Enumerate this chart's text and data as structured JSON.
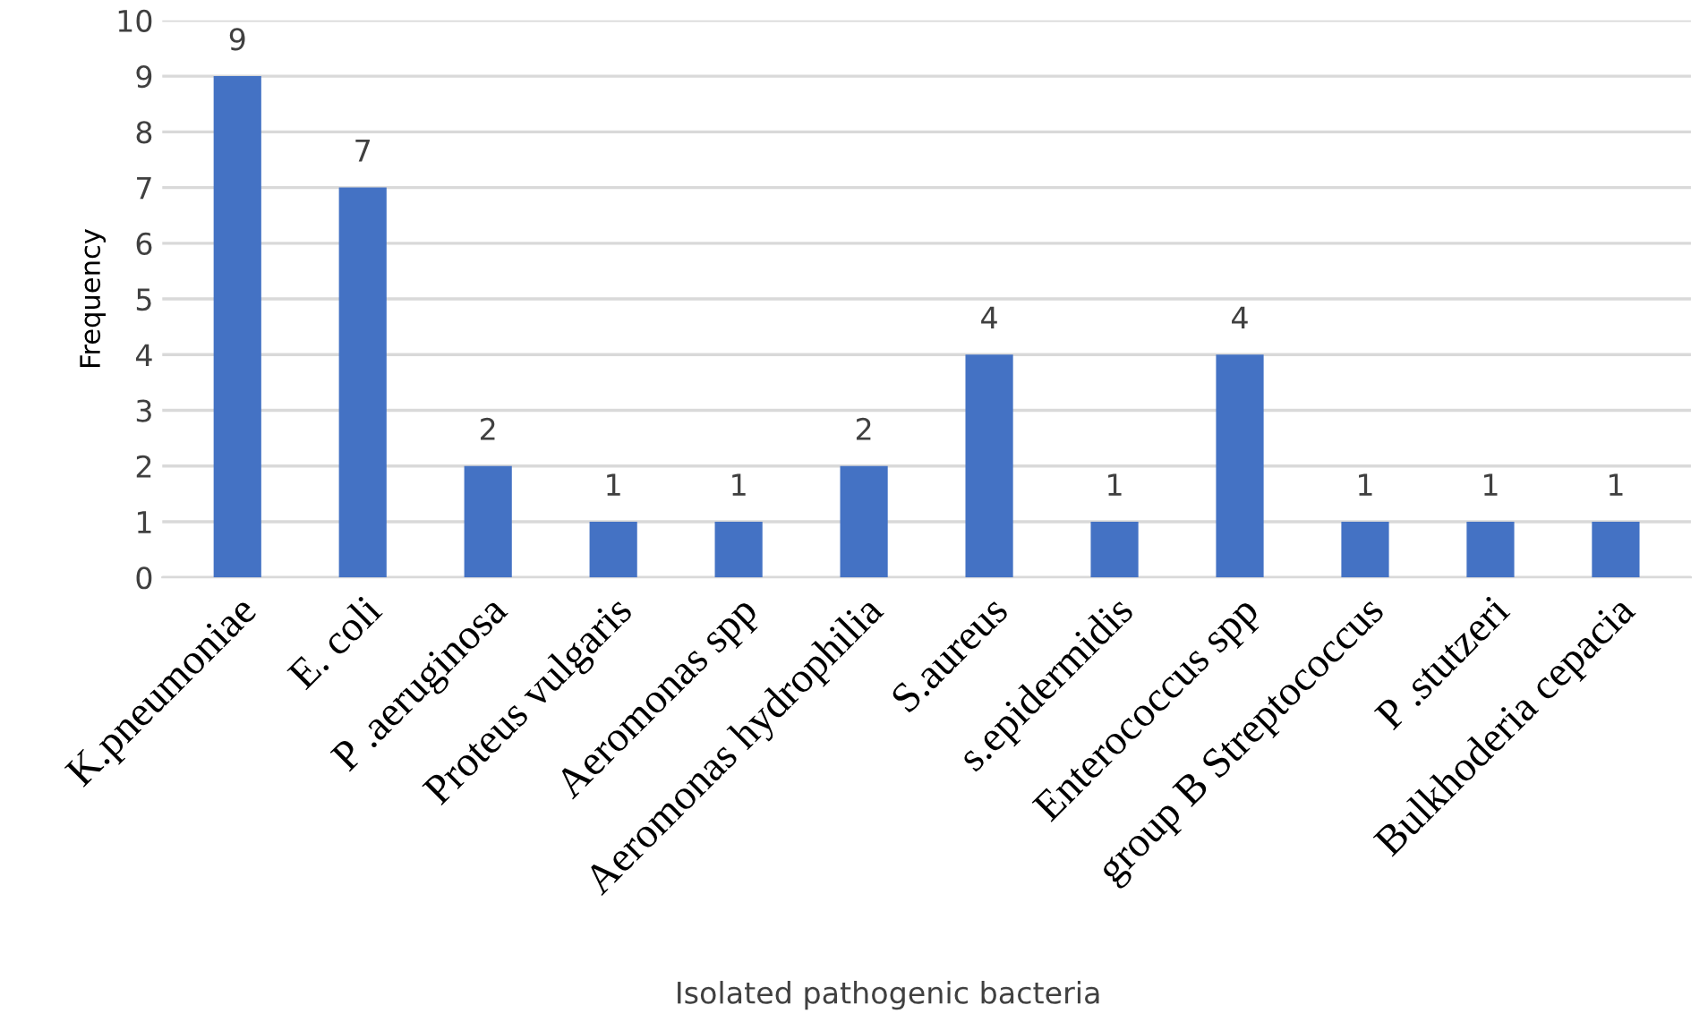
{
  "chart_data": {
    "type": "bar",
    "xlabel": "Isolated pathogenic bacteria",
    "ylabel": "Frequency",
    "categories": [
      "K.pneumoniae",
      "E. coli",
      "P .aeruginosa",
      "Proteus vulgaris",
      "Aeromonas spp",
      "Aeromonas hydrophilia",
      "S.aureus",
      "s.epidermidis",
      "Enterococcus spp",
      "group B Streptococcus",
      "P .stutzeri",
      "Bulkhoderia cepacia"
    ],
    "values": [
      9,
      7,
      2,
      1,
      1,
      2,
      4,
      1,
      4,
      1,
      1,
      1
    ],
    "color": "#4472c4",
    "ylim": [
      0,
      10
    ],
    "yticks": [
      0,
      1,
      2,
      3,
      4,
      5,
      6,
      7,
      8,
      9,
      10
    ],
    "grid": "y",
    "data_labels": true
  }
}
